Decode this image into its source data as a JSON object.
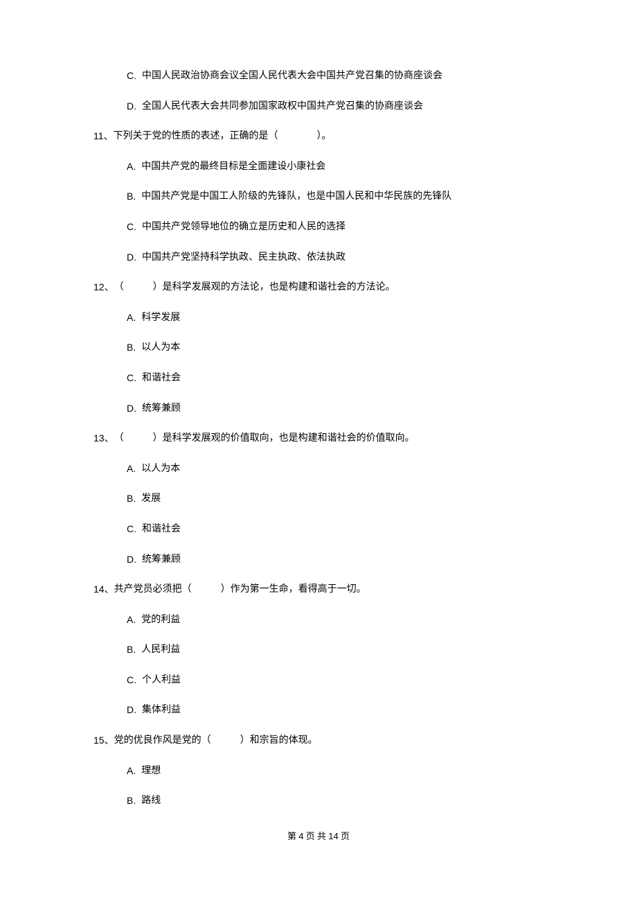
{
  "options_top": [
    {
      "letter": "C.",
      "text": "中国人民政治协商会议全国人民代表大会中国共产党召集的协商座谈会"
    },
    {
      "letter": "D.",
      "text": "全国人民代表大会共同参加国家政权中国共产党召集的协商座谈会"
    }
  ],
  "questions": [
    {
      "num": "11、",
      "text": "下列关于党的性质的表述，正确的是（　　　　）。",
      "options": [
        {
          "letter": "A.",
          "text": "中国共产党的最终目标是全面建设小康社会"
        },
        {
          "letter": "B.",
          "text": "中国共产党是中国工人阶级的先锋队，也是中国人民和中华民族的先锋队"
        },
        {
          "letter": "C.",
          "text": "中国共产党领导地位的确立是历史和人民的选择"
        },
        {
          "letter": "D.",
          "text": "中国共产党坚持科学执政、民主执政、依法执政"
        }
      ]
    },
    {
      "num": "12、",
      "text": "（　　　）是科学发展观的方法论，也是构建和谐社会的方法论。",
      "options": [
        {
          "letter": "A.",
          "text": "科学发展"
        },
        {
          "letter": "B.",
          "text": "以人为本"
        },
        {
          "letter": "C.",
          "text": "和谐社会"
        },
        {
          "letter": "D.",
          "text": "统筹兼顾"
        }
      ]
    },
    {
      "num": "13、",
      "text": "（　　　）是科学发展观的价值取向，也是构建和谐社会的价值取向。",
      "options": [
        {
          "letter": "A.",
          "text": "以人为本"
        },
        {
          "letter": "B.",
          "text": "发展"
        },
        {
          "letter": "C.",
          "text": "和谐社会"
        },
        {
          "letter": "D.",
          "text": "统筹兼顾"
        }
      ]
    },
    {
      "num": "14、",
      "text": "共产党员必须把（　　　）作为第一生命，看得高于一切。",
      "options": [
        {
          "letter": "A.",
          "text": "党的利益"
        },
        {
          "letter": "B.",
          "text": "人民利益"
        },
        {
          "letter": "C.",
          "text": "个人利益"
        },
        {
          "letter": "D.",
          "text": "集体利益"
        }
      ]
    },
    {
      "num": "15、",
      "text": "党的优良作风是党的（　　　）和宗旨的体现。",
      "options": [
        {
          "letter": "A.",
          "text": "理想"
        },
        {
          "letter": "B.",
          "text": "路线"
        }
      ]
    }
  ],
  "footer": {
    "prefix": "第 ",
    "current": "4",
    "mid": " 页 共 ",
    "total": "14",
    "suffix": " 页"
  }
}
